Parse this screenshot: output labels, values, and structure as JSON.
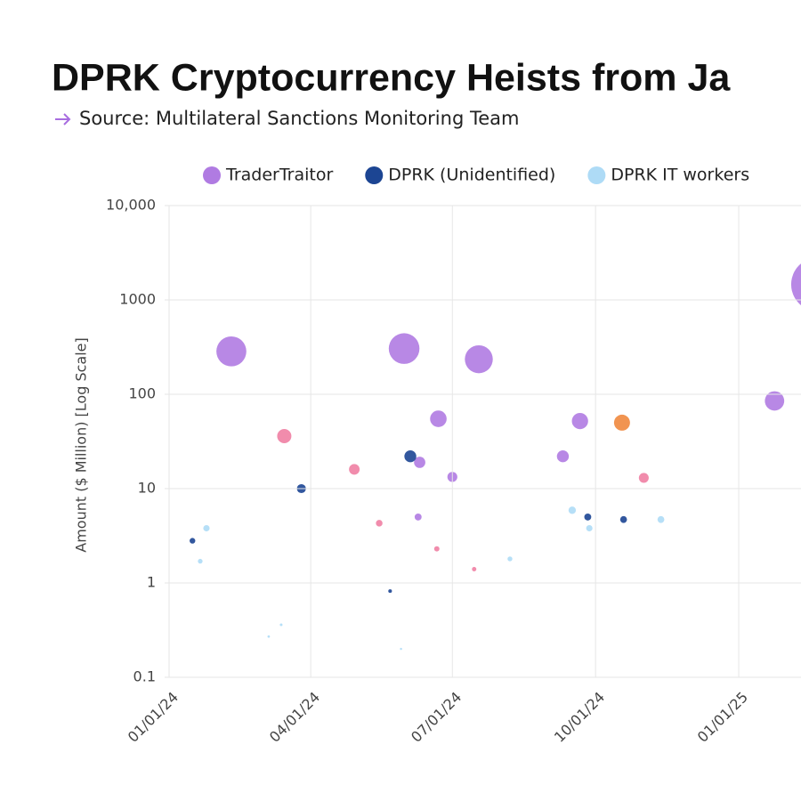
{
  "chart_data": {
    "type": "scatter",
    "title": "DPRK Cryptocurrency Heists from Ja",
    "subtitle": "Source: Multilateral Sanctions Monitoring Team",
    "y_label": "Amount ($ Million) [Log Scale]",
    "log_y": true,
    "grid": true,
    "legend": "top",
    "xlim": [
      "2024-01-01",
      "2025-02-10"
    ],
    "xticks": [
      {
        "value": "2024-01-01",
        "label": "01/01/24"
      },
      {
        "value": "2024-04-01",
        "label": "04/01/24"
      },
      {
        "value": "2024-07-01",
        "label": "07/01/24"
      },
      {
        "value": "2024-10-01",
        "label": "10/01/24"
      },
      {
        "value": "2025-01-01",
        "label": "01/01/25"
      }
    ],
    "ylim": [
      0.1,
      10000
    ],
    "yticks": [
      0.1,
      1,
      10,
      100,
      1000,
      {
        "value": 10000,
        "label": "10,000"
      }
    ],
    "series": [
      {
        "name": "TraderTraitor",
        "color": "#b07be2",
        "x": [
          "2024-02-10",
          "2024-05-31",
          "2024-07-18",
          "2024-06-22",
          "2024-06-10",
          "2024-06-09",
          "2024-07-01",
          "2024-09-21",
          "2024-09-10",
          "2025-01-24",
          "2025-02-21"
        ],
        "values": [
          285,
          305,
          235,
          55,
          19,
          5,
          13.3,
          52,
          22,
          85,
          1460
        ]
      },
      {
        "name": "DPRK (Unidentified)",
        "color": "#1c4593",
        "x": [
          "2024-01-16",
          "2024-03-26",
          "2024-06-04",
          "2024-05-22",
          "2024-09-26",
          "2024-10-19"
        ],
        "values": [
          2.8,
          10,
          22,
          0.82,
          5,
          4.7
        ]
      },
      {
        "name": "DPRK IT workers",
        "color": "#aedbf6",
        "x": [
          "2024-01-25",
          "2024-01-21",
          "2024-03-05",
          "2024-03-13",
          "2024-05-29",
          "2024-08-07",
          "2024-09-16",
          "2024-09-27",
          "2024-11-12"
        ],
        "values": [
          3.8,
          1.7,
          0.27,
          0.36,
          0.2,
          1.8,
          5.9,
          3.8,
          4.7
        ]
      },
      {
        "color": "#f07fa3",
        "x": [
          "2024-03-15",
          "2024-04-29",
          "2024-05-15",
          "2024-06-21",
          "2024-07-15",
          "2024-11-01"
        ],
        "values": [
          36,
          16,
          4.3,
          2.3,
          1.4,
          13
        ]
      },
      {
        "color": "#f0883e",
        "x": [
          "2024-10-18"
        ],
        "values": [
          50
        ]
      }
    ]
  }
}
